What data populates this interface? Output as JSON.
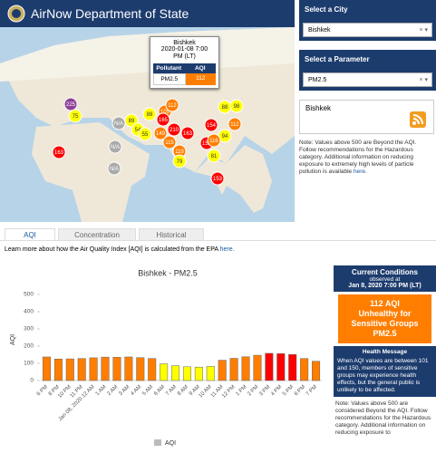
{
  "header": {
    "title": "AirNow Department of State"
  },
  "map": {
    "popup": {
      "city": "Bishkek",
      "time": "2020-01-08 7:00 PM (LT)",
      "col1": "Pollutant",
      "col2": "AQI",
      "pollutant": "PM2.5",
      "aqi": "112"
    },
    "markers": [
      {
        "label": "225",
        "color": "#8f3f97"
      },
      {
        "label": "75",
        "color": "#ffff00"
      },
      {
        "label": "163",
        "color": "#ff0000"
      },
      {
        "label": "N/A",
        "color": "#aaaaaa"
      },
      {
        "label": "89",
        "color": "#ffff00"
      },
      {
        "label": "54",
        "color": "#ffff00"
      },
      {
        "label": "55",
        "color": "#ffff00"
      },
      {
        "label": "N/A",
        "color": "#aaaaaa"
      },
      {
        "label": "N/A",
        "color": "#aaaaaa"
      },
      {
        "label": "88",
        "color": "#ffff00"
      },
      {
        "label": "105",
        "color": "#ff7e00"
      },
      {
        "label": "112",
        "color": "#ff7e00"
      },
      {
        "label": "165",
        "color": "#ff0000"
      },
      {
        "label": "149",
        "color": "#ff7e00"
      },
      {
        "label": "115",
        "color": "#ff7e00"
      },
      {
        "label": "210",
        "color": "#ff0000"
      },
      {
        "label": "163",
        "color": "#ff0000"
      },
      {
        "label": "154",
        "color": "#ff0000"
      },
      {
        "label": "88",
        "color": "#ffff00"
      },
      {
        "label": "98",
        "color": "#ffff00"
      },
      {
        "label": "112",
        "color": "#ff7e00"
      },
      {
        "label": "94",
        "color": "#ffff00"
      },
      {
        "label": "152",
        "color": "#ff0000"
      },
      {
        "label": "116",
        "color": "#ff7e00"
      },
      {
        "label": "81",
        "color": "#ffff00"
      },
      {
        "label": "119",
        "color": "#ff7e00"
      },
      {
        "label": "79",
        "color": "#ffff00"
      },
      {
        "label": "153",
        "color": "#ff0000"
      }
    ]
  },
  "sidebar": {
    "city_heading": "Select a City",
    "city_value": "Bishkek",
    "param_heading": "Select a Parameter",
    "param_value": "PM2.5",
    "box_title": "Bishkek",
    "note": "Note: Values above 500 are Beyond the AQI. Follow recommendations for the Hazardous category. Additional information on reducing exposure to extremely high levels of particle pollution is available ",
    "note_link": "here."
  },
  "tabs": [
    "AQI",
    "Concentration",
    "Historical"
  ],
  "learn": {
    "text": "Learn more about how the Air Quality Index [AQI] is calculated from the EPA ",
    "link": "here."
  },
  "chart_data": {
    "type": "bar",
    "title": "Bishkek - PM2.5",
    "y_label": "AQI",
    "categories": [
      "6 PM",
      "8 PM",
      "10 PM",
      "11 PM",
      "Jan 08, 2020 12 AM",
      "1 AM",
      "2 AM",
      "3 AM",
      "4 AM",
      "5 AM",
      "6 AM",
      "7 AM",
      "8 AM",
      "9 AM",
      "10 AM",
      "11 AM",
      "12 PM",
      "1 PM",
      "2 PM",
      "3 PM",
      "4 PM",
      "5 PM",
      "6 PM",
      "7 PM"
    ],
    "series": [
      {
        "name": "AQI",
        "color": "#bbbbbb",
        "values": [
          137,
          125,
          126,
          128,
          132,
          136,
          135,
          137,
          133,
          128,
          97,
          86,
          80,
          78,
          82,
          118,
          129,
          138,
          147,
          158,
          156,
          151,
          128,
          112
        ],
        "colors": [
          "#ff7e00",
          "#ff7e00",
          "#ff7e00",
          "#ff7e00",
          "#ff7e00",
          "#ff7e00",
          "#ff7e00",
          "#ff7e00",
          "#ff7e00",
          "#ff7e00",
          "#ffff00",
          "#ffff00",
          "#ffff00",
          "#ffff00",
          "#ffff00",
          "#ff7e00",
          "#ff7e00",
          "#ff7e00",
          "#ff7e00",
          "#ff0000",
          "#ff0000",
          "#ff0000",
          "#ff7e00",
          "#ff7e00"
        ]
      }
    ],
    "ylim": [
      0,
      500
    ],
    "yticks": [
      0,
      100,
      200,
      300,
      400,
      500
    ],
    "grid": false,
    "legend": "bottom"
  },
  "current": {
    "title": "Current Conditions",
    "observed": "observed at",
    "time": "Jan 8, 2020 7:00 PM (LT)",
    "aqi": "112 AQI",
    "category": "Unhealthy for Sensitive Groups",
    "pollutant": "PM2.5",
    "health_title": "Health Message",
    "health_text": "When AQI values are between 101 and 150, members of sensitive groups may experience health effects, but the general public is unlikely to be affected.",
    "note": "Note: Values above 500 are considered Beyond the AQI. Follow recommendations for the Hazardous category. Additional information on reducing exposure to"
  }
}
